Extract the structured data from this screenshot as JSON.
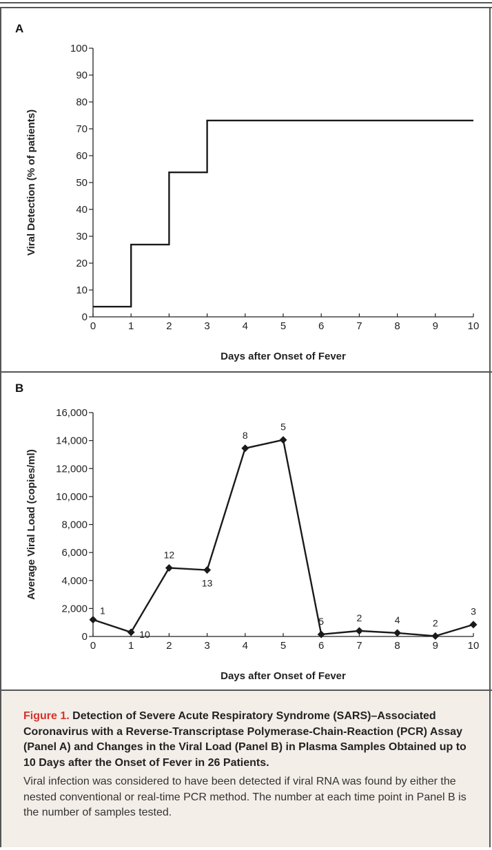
{
  "figure": {
    "label": "Figure 1.",
    "title": "Detection of Severe Acute Respiratory Syndrome (SARS)–Associated Coronavirus with a Reverse-Transcriptase Polymerase-Chain-Reaction (PCR) Assay (Panel A) and Changes in the Viral Load (Panel B) in Plasma Samples Obtained up to 10 Days after the Onset of Fever in 26 Patients.",
    "description": "Viral infection was considered to have been detected if viral RNA was found by either the nested conventional or real-time PCR method. The number at each time point in Panel B is the number of samples tested."
  },
  "chart_data": [
    {
      "panel": "A",
      "type": "line",
      "step": true,
      "xlabel": "Days after Onset of Fever",
      "ylabel": "Viral Detection (% of patients)",
      "xlim": [
        0,
        10
      ],
      "ylim": [
        0,
        100
      ],
      "x_ticks": [
        "0",
        "1",
        "2",
        "3",
        "4",
        "5",
        "6",
        "7",
        "8",
        "9",
        "10"
      ],
      "y_ticks": [
        "0",
        "10",
        "20",
        "30",
        "40",
        "50",
        "60",
        "70",
        "80",
        "90",
        "100"
      ],
      "x": [
        0,
        1,
        2,
        3,
        10
      ],
      "values": [
        3.8,
        26.9,
        53.8,
        73.1,
        73.1
      ]
    },
    {
      "panel": "B",
      "type": "line",
      "xlabel": "Days after Onset of Fever",
      "ylabel": "Average Viral Load (copies/ml)",
      "xlim": [
        0,
        10
      ],
      "ylim": [
        0,
        16000
      ],
      "x_ticks": [
        "0",
        "1",
        "2",
        "3",
        "4",
        "5",
        "6",
        "7",
        "8",
        "9",
        "10"
      ],
      "y_ticks": [
        "0",
        "2,000",
        "4,000",
        "6,000",
        "8,000",
        "10,000",
        "12,000",
        "14,000",
        "16,000"
      ],
      "x": [
        0,
        1,
        2,
        3,
        4,
        5,
        6,
        7,
        8,
        9,
        10
      ],
      "values": [
        1200,
        300,
        4900,
        4750,
        13450,
        14050,
        150,
        400,
        250,
        30,
        850
      ],
      "point_labels": [
        "1",
        "10",
        "12",
        "13",
        "8",
        "5",
        "5",
        "2",
        "4",
        "2",
        "3"
      ]
    }
  ]
}
